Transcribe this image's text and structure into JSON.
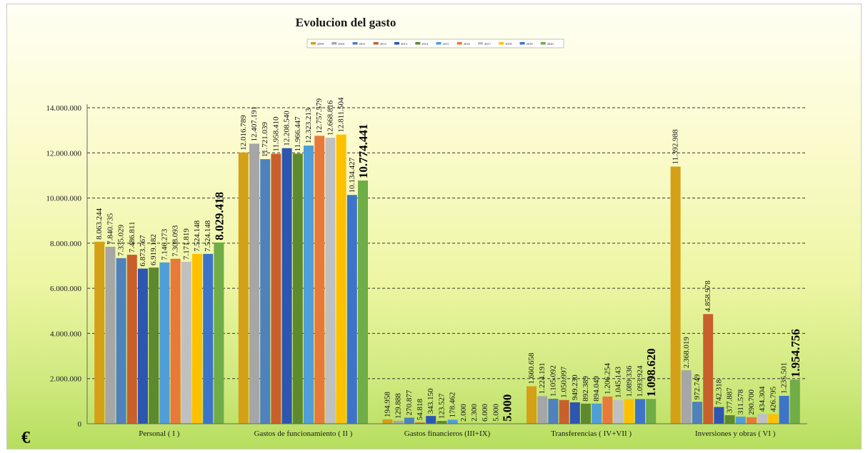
{
  "chart_data": {
    "type": "bar",
    "title": "Evolucion del gasto",
    "y_unit_symbol": "€",
    "ylim": [
      0,
      14000000
    ],
    "y_ticks": [
      "0",
      "2.000.000",
      "4.000.000",
      "6.000.000",
      "8.000.000",
      "10.000.000",
      "12.000.000",
      "14.000.000"
    ],
    "y_tick_values": [
      0,
      2000000,
      4000000,
      6000000,
      8000000,
      10000000,
      12000000,
      14000000
    ],
    "grid": true,
    "legend_position": "top-center",
    "categories": [
      "Personal ( I )",
      "Gastos de funcionamiento ( II )",
      "Gastos financieros (III+IX)",
      "Transferencias ( IV+VII )",
      "Inversiones y obras ( VI )"
    ],
    "series": [
      {
        "name": "2009",
        "color": "#d4a017",
        "values": [
          8063244,
          12016789,
          194958,
          1660658,
          11392988
        ],
        "labels": [
          "8.063.244",
          "12.016.789",
          "194.958",
          "1.660.658",
          "11.392.988"
        ]
      },
      {
        "name": "2010",
        "color": "#a6a6a6",
        "values": [
          7840735,
          12407191,
          129888,
          1224191,
          2368019
        ],
        "labels": [
          "7.840.735",
          "12.407.191",
          "129.888",
          "1.224.191",
          "2.368.019"
        ]
      },
      {
        "name": "2011",
        "color": "#4e81bd",
        "values": [
          7335029,
          11721039,
          270877,
          1105092,
          972749
        ],
        "labels": [
          "7.335.029",
          "11.721.039",
          "270.877",
          "1.105.092",
          "972.749"
        ]
      },
      {
        "name": "2012",
        "color": "#c8602c",
        "values": [
          7486811,
          11958410,
          54818,
          1050997,
          4858978
        ],
        "labels": [
          "7.486.811",
          "11.958.410",
          "54.818",
          "1.050.997",
          "4.858.978"
        ]
      },
      {
        "name": "2013",
        "color": "#2c56b0",
        "values": [
          6873767,
          12208540,
          343150,
          949230,
          742318
        ],
        "labels": [
          "6.873.767",
          "12.208.540",
          "343.150",
          "949.230",
          "742.318"
        ]
      },
      {
        "name": "2014",
        "color": "#5d8a2e",
        "values": [
          6919182,
          11966447,
          123527,
          892389,
          377887
        ],
        "labels": [
          "6.919.182",
          "11.966.447",
          "123.527",
          "892.389",
          "377.887"
        ]
      },
      {
        "name": "2015",
        "color": "#4f9ed8",
        "values": [
          7146273,
          12323213,
          178462,
          894049,
          311578
        ],
        "labels": [
          "7.146.273",
          "12.323.213",
          "178.462",
          "894.049",
          "311.578"
        ]
      },
      {
        "name": "2016",
        "color": "#e8793a",
        "values": [
          7308093,
          12757579,
          2000,
          1206254,
          290700
        ],
        "labels": [
          "7.308.093",
          "12.757.579",
          "2.000",
          "1.206.254",
          "290.700"
        ]
      },
      {
        "name": "2017",
        "color": "#c0c0c0",
        "values": [
          7171819,
          12668816,
          2300,
          1045143,
          434304
        ],
        "labels": [
          "7.171.819",
          "12.668.816",
          "2.300",
          "1.045.143",
          "434.304"
        ]
      },
      {
        "name": "2018",
        "color": "#ffc000",
        "values": [
          7524148,
          12811504,
          6000,
          1089336,
          426795
        ],
        "labels": [
          "7.524.148",
          "12.811.504",
          "6.000",
          "1.089.336",
          "426.795"
        ]
      },
      {
        "name": "2019",
        "color": "#3e74c8",
        "values": [
          7524148,
          10134427,
          5000,
          1093924,
          1235501
        ],
        "labels": [
          "7.524.148",
          "10.134.427",
          "5.000",
          "1.093.924",
          "1.235.501"
        ]
      },
      {
        "name": "2020",
        "color": "#70ad47",
        "values": [
          8029418,
          10774441,
          5000,
          1098620,
          1954756
        ],
        "labels": [
          "8.029.418",
          "10.774.441",
          "5.000",
          "1.098.620",
          "1.954.756"
        ]
      }
    ]
  }
}
